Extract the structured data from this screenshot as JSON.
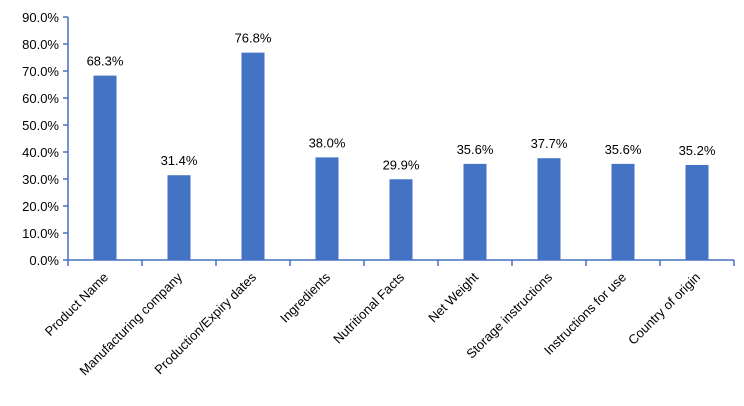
{
  "chart_data": {
    "type": "bar",
    "categories": [
      "Product Name",
      "Manufacturing company",
      "Production/Expiry dates",
      "Ingredients",
      "Nutritional Facts",
      "Net Weight",
      "Storage instructions",
      "Instructions for use",
      "Country of origin"
    ],
    "values": [
      68.3,
      31.4,
      76.8,
      38.0,
      29.9,
      35.6,
      37.7,
      35.6,
      35.2
    ],
    "value_labels": [
      "68.3%",
      "31.4%",
      "76.8%",
      "38.0%",
      "29.9%",
      "35.6%",
      "37.7%",
      "35.6%",
      "35.2%"
    ],
    "ylim": [
      0,
      90
    ],
    "yticks": [
      "0.0%",
      "10.0%",
      "20.0%",
      "30.0%",
      "40.0%",
      "50.0%",
      "60.0%",
      "70.0%",
      "80.0%",
      "90.0%"
    ],
    "grid": false,
    "legend": "none",
    "bar_color": "#4472c4",
    "axis_color": "#4472c4"
  }
}
